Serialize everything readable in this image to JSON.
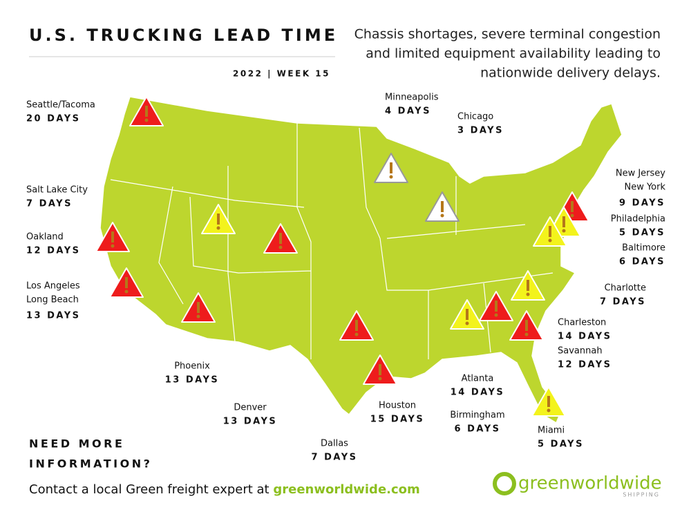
{
  "header": {
    "title": "U.S. TRUCKING LEAD TIME",
    "week": "2022 | WEEK 15",
    "description": [
      "Chassis shortages, severe terminal congestion",
      "and limited equipment availability leading to",
      "nationwide delivery delays."
    ]
  },
  "cities": [
    {
      "names": [
        "Seattle/Tacoma"
      ],
      "lead_time": "20 DAYS"
    },
    {
      "names": [
        "Salt Lake City"
      ],
      "lead_time": "7 DAYS"
    },
    {
      "names": [
        "Oakland"
      ],
      "lead_time": "12 DAYS"
    },
    {
      "names": [
        "Los Angeles",
        "Long Beach"
      ],
      "lead_time": "13 DAYS"
    },
    {
      "names": [
        "Phoenix"
      ],
      "lead_time": "13 DAYS"
    },
    {
      "names": [
        "Denver"
      ],
      "lead_time": "13 DAYS"
    },
    {
      "names": [
        "Dallas"
      ],
      "lead_time": "7 DAYS"
    },
    {
      "names": [
        "Houston"
      ],
      "lead_time": "15 DAYS"
    },
    {
      "names": [
        "Minneapolis"
      ],
      "lead_time": "4 DAYS"
    },
    {
      "names": [
        "Chicago"
      ],
      "lead_time": "3 DAYS"
    },
    {
      "names": [
        "Atlanta"
      ],
      "lead_time": "14 DAYS"
    },
    {
      "names": [
        "Birmingham"
      ],
      "lead_time": "6 DAYS"
    },
    {
      "names": [
        "Miami"
      ],
      "lead_time": "5 DAYS"
    },
    {
      "names": [
        "Charleston"
      ],
      "lead_time": "14 DAYS"
    },
    {
      "names": [
        "Savannah"
      ],
      "lead_time": "12 DAYS"
    },
    {
      "names": [
        "Charlotte"
      ],
      "lead_time": "7 DAYS"
    },
    {
      "names": [
        "New Jersey",
        "New York"
      ],
      "lead_time": "9 DAYS"
    },
    {
      "names": [
        "Philadelphia"
      ],
      "lead_time": "5 DAYS"
    },
    {
      "names": [
        "Baltimore"
      ],
      "lead_time": "6 DAYS"
    }
  ],
  "footer": {
    "cta": [
      "NEED MORE",
      "INFORMATION?"
    ],
    "contact": "Contact a local Green freight expert at ",
    "link": "greenworldwide.com",
    "logo": "greenworldwide",
    "logo_sub": "SHIPPING"
  }
}
